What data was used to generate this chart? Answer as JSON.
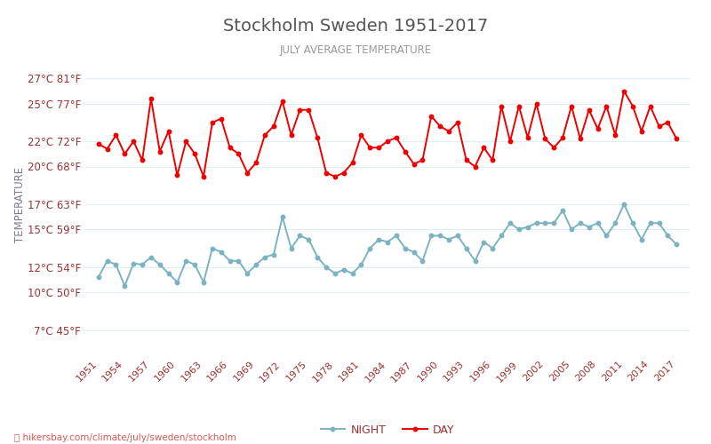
{
  "title": "Stockholm Sweden 1951-2017",
  "subtitle": "JULY AVERAGE TEMPERATURE",
  "ylabel": "TEMPERATURE",
  "years": [
    1951,
    1952,
    1953,
    1954,
    1955,
    1956,
    1957,
    1958,
    1959,
    1960,
    1961,
    1962,
    1963,
    1964,
    1965,
    1966,
    1967,
    1968,
    1969,
    1970,
    1971,
    1972,
    1973,
    1974,
    1975,
    1976,
    1977,
    1978,
    1979,
    1980,
    1981,
    1982,
    1983,
    1984,
    1985,
    1986,
    1987,
    1988,
    1989,
    1990,
    1991,
    1992,
    1993,
    1994,
    1995,
    1996,
    1997,
    1998,
    1999,
    2000,
    2001,
    2002,
    2003,
    2004,
    2005,
    2006,
    2007,
    2008,
    2009,
    2010,
    2011,
    2012,
    2013,
    2014,
    2015,
    2016,
    2017
  ],
  "day": [
    21.8,
    21.4,
    22.5,
    21.0,
    22.0,
    20.5,
    25.4,
    21.2,
    22.8,
    19.3,
    22.0,
    21.0,
    19.2,
    23.5,
    23.8,
    21.5,
    21.0,
    19.5,
    20.3,
    22.5,
    23.2,
    25.2,
    22.5,
    24.5,
    24.5,
    22.3,
    19.5,
    19.2,
    19.5,
    20.3,
    22.5,
    21.5,
    21.5,
    22.0,
    22.3,
    21.2,
    20.2,
    20.5,
    24.0,
    23.2,
    22.8,
    23.5,
    20.5,
    20.0,
    21.5,
    20.5,
    24.8,
    22.0,
    24.8,
    22.3,
    25.0,
    22.2,
    21.5,
    22.3,
    24.8,
    22.2,
    24.5,
    23.0,
    24.8,
    22.5,
    26.0,
    24.8,
    22.8,
    24.8,
    23.2,
    23.5,
    22.2
  ],
  "night": [
    11.2,
    12.5,
    12.2,
    10.5,
    12.3,
    12.2,
    12.8,
    12.2,
    11.5,
    10.8,
    12.5,
    12.2,
    10.8,
    13.5,
    13.2,
    12.5,
    12.5,
    11.5,
    12.2,
    12.8,
    13.0,
    16.0,
    13.5,
    14.5,
    14.2,
    12.8,
    12.0,
    11.5,
    11.8,
    11.5,
    12.2,
    13.5,
    14.2,
    14.0,
    14.5,
    13.5,
    13.2,
    12.5,
    14.5,
    14.5,
    14.2,
    14.5,
    13.5,
    12.5,
    14.0,
    13.5,
    14.5,
    15.5,
    15.0,
    15.2,
    15.5,
    15.5,
    15.5,
    16.5,
    15.0,
    15.5,
    15.2,
    15.5,
    14.5,
    15.5,
    17.0,
    15.5,
    14.2,
    15.5,
    15.5,
    14.5,
    13.8
  ],
  "day_color": "#ee0000",
  "night_color": "#7bb3c0",
  "title_color": "#555555",
  "subtitle_color": "#999999",
  "ylabel_color": "#7a7a9a",
  "tick_label_color": "#993333",
  "grid_color": "#ddeef5",
  "bg_color": "#ffffff",
  "yticks_c": [
    7,
    10,
    12,
    15,
    17,
    20,
    22,
    25,
    27
  ],
  "yticks_f": [
    45,
    50,
    54,
    59,
    63,
    68,
    72,
    77,
    81
  ],
  "xtick_years": [
    1951,
    1954,
    1957,
    1960,
    1963,
    1966,
    1969,
    1972,
    1975,
    1978,
    1981,
    1984,
    1987,
    1990,
    1993,
    1996,
    1999,
    2002,
    2005,
    2008,
    2011,
    2014,
    2017
  ],
  "footer": "hikersbay.com/climate/july/sweden/stockholm",
  "ylim": [
    5,
    29
  ]
}
